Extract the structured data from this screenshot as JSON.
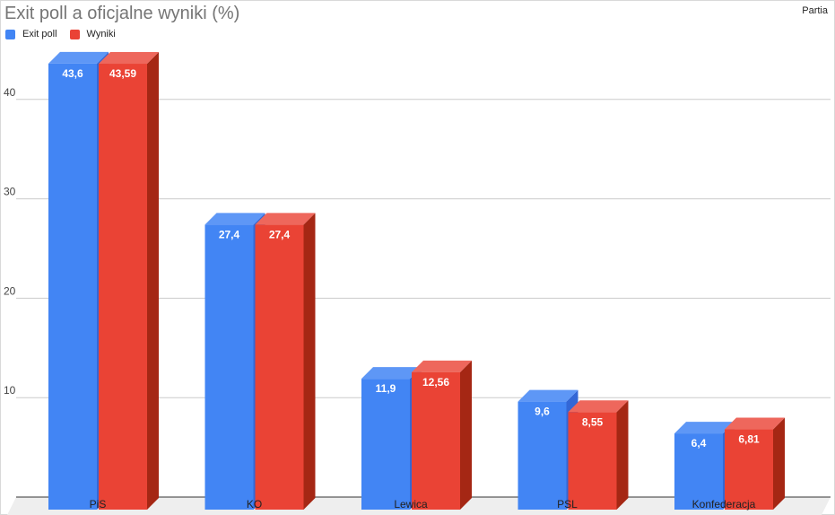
{
  "chart_data": {
    "type": "bar",
    "title": "Exit poll a oficjalne wyniki (%)",
    "corner_label": "Partia",
    "categories": [
      "PiS",
      "KO",
      "Lewica",
      "PSL",
      "Konfederacja"
    ],
    "series": [
      {
        "name": "Exit poll",
        "values": [
          43.6,
          27.4,
          11.9,
          9.6,
          6.4
        ],
        "labels": [
          "43,6",
          "27,4",
          "11,9",
          "9,6",
          "6,4"
        ],
        "color": "#4285f4",
        "top_color": "#5e97f6",
        "side_color": "#3367d6"
      },
      {
        "name": "Wyniki",
        "values": [
          43.59,
          27.4,
          12.56,
          8.55,
          6.81
        ],
        "labels": [
          "43,59",
          "27,4",
          "12,56",
          "8,55",
          "6,81"
        ],
        "color": "#ea4335",
        "top_color": "#ee675c",
        "side_color": "#a52714"
      }
    ],
    "y_ticks": [
      10,
      20,
      30,
      40
    ],
    "ylim": [
      0,
      47
    ],
    "grid": true,
    "legend_position": "top-left",
    "style": "3d-bar"
  }
}
